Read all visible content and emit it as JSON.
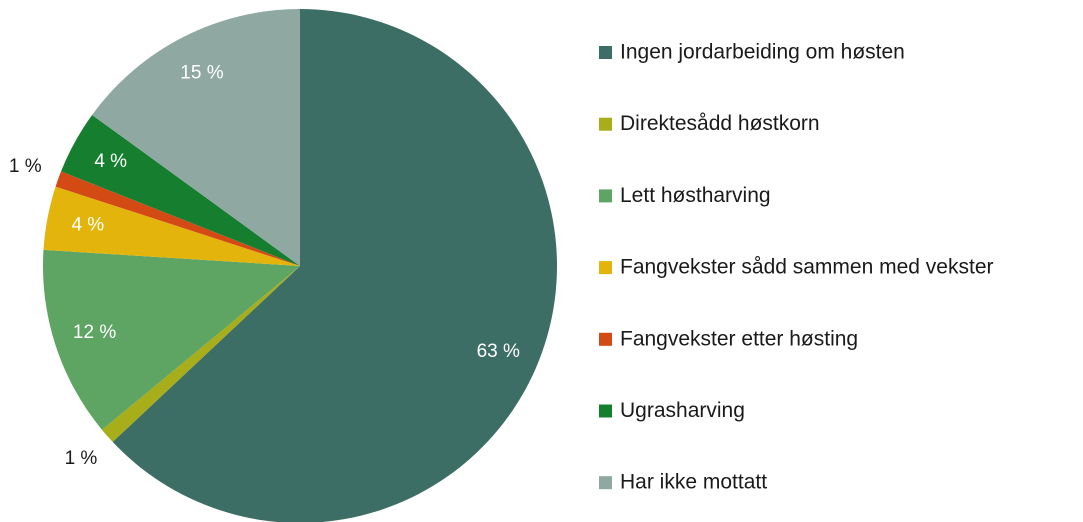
{
  "chart_data": {
    "type": "pie",
    "categories": [
      "Ingen jordarbeiding om høsten",
      "Direktesådd høstkorn",
      "Lett høstharving",
      "Fangvekster sådd sammen med vekster",
      "Fangvekster etter høsting",
      "Ugrasharving",
      "Har ikke mottatt"
    ],
    "values": [
      63,
      1,
      12,
      4,
      1,
      4,
      15
    ],
    "value_labels": [
      "63 %",
      "1 %",
      "12 %",
      "4 %",
      "1 %",
      "4 %",
      "15 %"
    ],
    "colors": [
      "#3d6e66",
      "#a8ad1a",
      "#5ea463",
      "#e3b50c",
      "#d34a14",
      "#167f2f",
      "#8fa8a2"
    ]
  }
}
